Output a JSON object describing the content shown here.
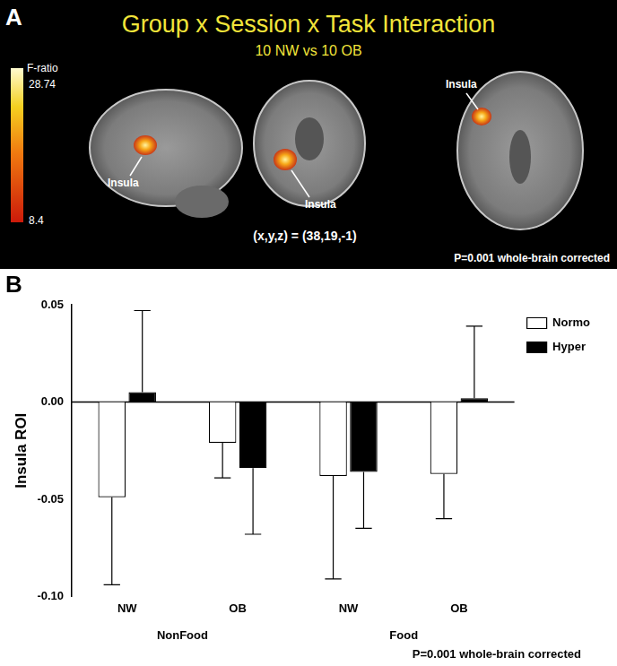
{
  "brain_panel": {
    "panel_label": "A",
    "title": "Group x Session x Task Interaction",
    "subtitle": "10 NW vs 10 OB",
    "colorbar": {
      "label": "F-ratio",
      "range": [
        8.4,
        28.74
      ]
    },
    "region_labels": [
      "Insula",
      "Insula",
      "Insula"
    ],
    "coordinates": "(x,y,z) = (38,19,-1)",
    "annotation": "P=0.001 whole-brain corrected"
  },
  "chart_data": {
    "type": "bar",
    "panel_label": "B",
    "y_label": "Insula ROI",
    "categories": [
      "NW",
      "OB",
      "NW",
      "OB"
    ],
    "category_groups": [
      "NonFood",
      "NonFood",
      "Food",
      "Food"
    ],
    "series": [
      {
        "name": "Normo",
        "color": "#ffffff",
        "values": [
          -0.049,
          -0.021,
          -0.038,
          -0.037
        ],
        "errors": [
          0.045,
          0.018,
          0.053,
          0.023
        ]
      },
      {
        "name": "Hyper",
        "color": "#000000",
        "values": [
          0.005,
          -0.034,
          -0.036,
          0.002
        ],
        "errors": [
          0.042,
          0.034,
          0.029,
          0.037
        ]
      }
    ],
    "ylim": [
      -0.1,
      0.05
    ],
    "yticks": [
      {
        "value": -0.1,
        "label": "-0.10"
      },
      {
        "value": -0.05,
        "label": "-0.05"
      },
      {
        "value": 0,
        "label": "0.00"
      },
      {
        "value": 0.05,
        "label": "0.05"
      }
    ],
    "grid": false,
    "legend": "right",
    "annotation": "P=0.001 whole-brain corrected"
  }
}
